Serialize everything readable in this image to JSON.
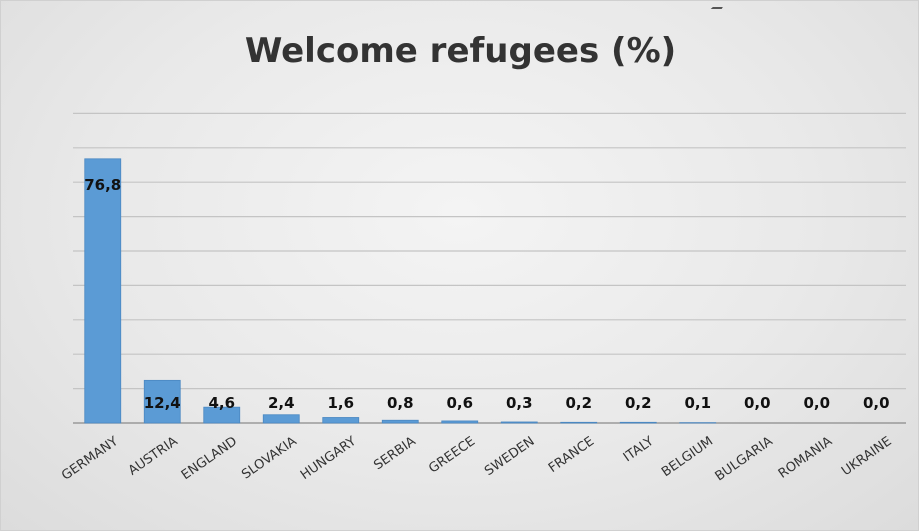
{
  "chart_data": {
    "type": "bar",
    "title": "Welcome refugees (%)",
    "categories": [
      "GERMANY",
      "AUSTRIA",
      "ENGLAND",
      "SLOVAKIA",
      "HUNGARY",
      "SERBIA",
      "GREECE",
      "SWEDEN",
      "FRANCE",
      "ITALY",
      "BELGIUM",
      "BULGARIA",
      "ROMANIA",
      "UKRAINE"
    ],
    "values": [
      76.8,
      12.4,
      4.6,
      2.4,
      1.6,
      0.8,
      0.6,
      0.3,
      0.2,
      0.2,
      0.1,
      0.0,
      0.0,
      0.0
    ],
    "data_labels": [
      "76,8",
      "12,4",
      "4,6",
      "2,4",
      "1,6",
      "0,8",
      "0,6",
      "0,3",
      "0,2",
      "0,2",
      "0,1",
      "0,0",
      "0,0",
      "0,0"
    ],
    "ylim": [
      0,
      90
    ],
    "y_axis_labels_shown": false,
    "grid": true,
    "legend": "none",
    "bar_color": "#5b9bd5"
  }
}
